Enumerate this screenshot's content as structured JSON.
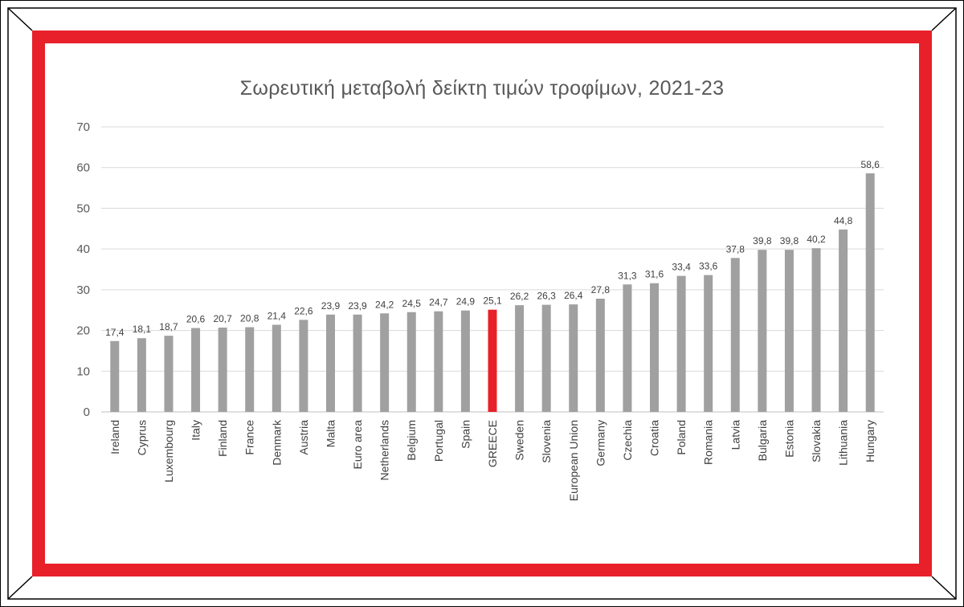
{
  "colors": {
    "frame_red": "#e8202a",
    "bar_default": "#a0a0a0",
    "bar_highlight": "#e8202a",
    "gridline": "#d9d9d9",
    "text": "#595959"
  },
  "chart_data": {
    "type": "bar",
    "title": "Σωρευτική μεταβολή δείκτη τιμών τροφίμων, 2021-23",
    "xlabel": "",
    "ylabel": "",
    "ylim": [
      0,
      70
    ],
    "yticks": [
      0,
      10,
      20,
      30,
      40,
      50,
      60,
      70
    ],
    "grid": true,
    "legend": "none",
    "highlight_category": "GREECE",
    "categories": [
      "Ireland",
      "Cyprus",
      "Luxembourg",
      "Italy",
      "Finland",
      "France",
      "Denmark",
      "Austria",
      "Malta",
      "Euro area",
      "Netherlands",
      "Belgium",
      "Portugal",
      "Spain",
      "GREECE",
      "Sweden",
      "Slovenia",
      "European Union",
      "Germany",
      "Czechia",
      "Croatia",
      "Poland",
      "Romania",
      "Latvia",
      "Bulgaria",
      "Estonia",
      "Slovakia",
      "Lithuania",
      "Hungary"
    ],
    "values": [
      17.4,
      18.1,
      18.7,
      20.6,
      20.7,
      20.8,
      21.4,
      22.6,
      23.9,
      23.9,
      24.2,
      24.5,
      24.7,
      24.9,
      25.1,
      26.2,
      26.3,
      26.4,
      27.8,
      31.3,
      31.6,
      33.4,
      33.6,
      37.8,
      39.8,
      39.8,
      40.2,
      44.8,
      58.6
    ],
    "value_labels": [
      "17,4",
      "18,1",
      "18,7",
      "20,6",
      "20,7",
      "20,8",
      "21,4",
      "22,6",
      "23,9",
      "23,9",
      "24,2",
      "24,5",
      "24,7",
      "24,9",
      "25,1",
      "26,2",
      "26,3",
      "26,4",
      "27,8",
      "31,3",
      "31,6",
      "33,4",
      "33,6",
      "37,8",
      "39,8",
      "39,8",
      "40,2",
      "44,8",
      "58,6"
    ]
  }
}
